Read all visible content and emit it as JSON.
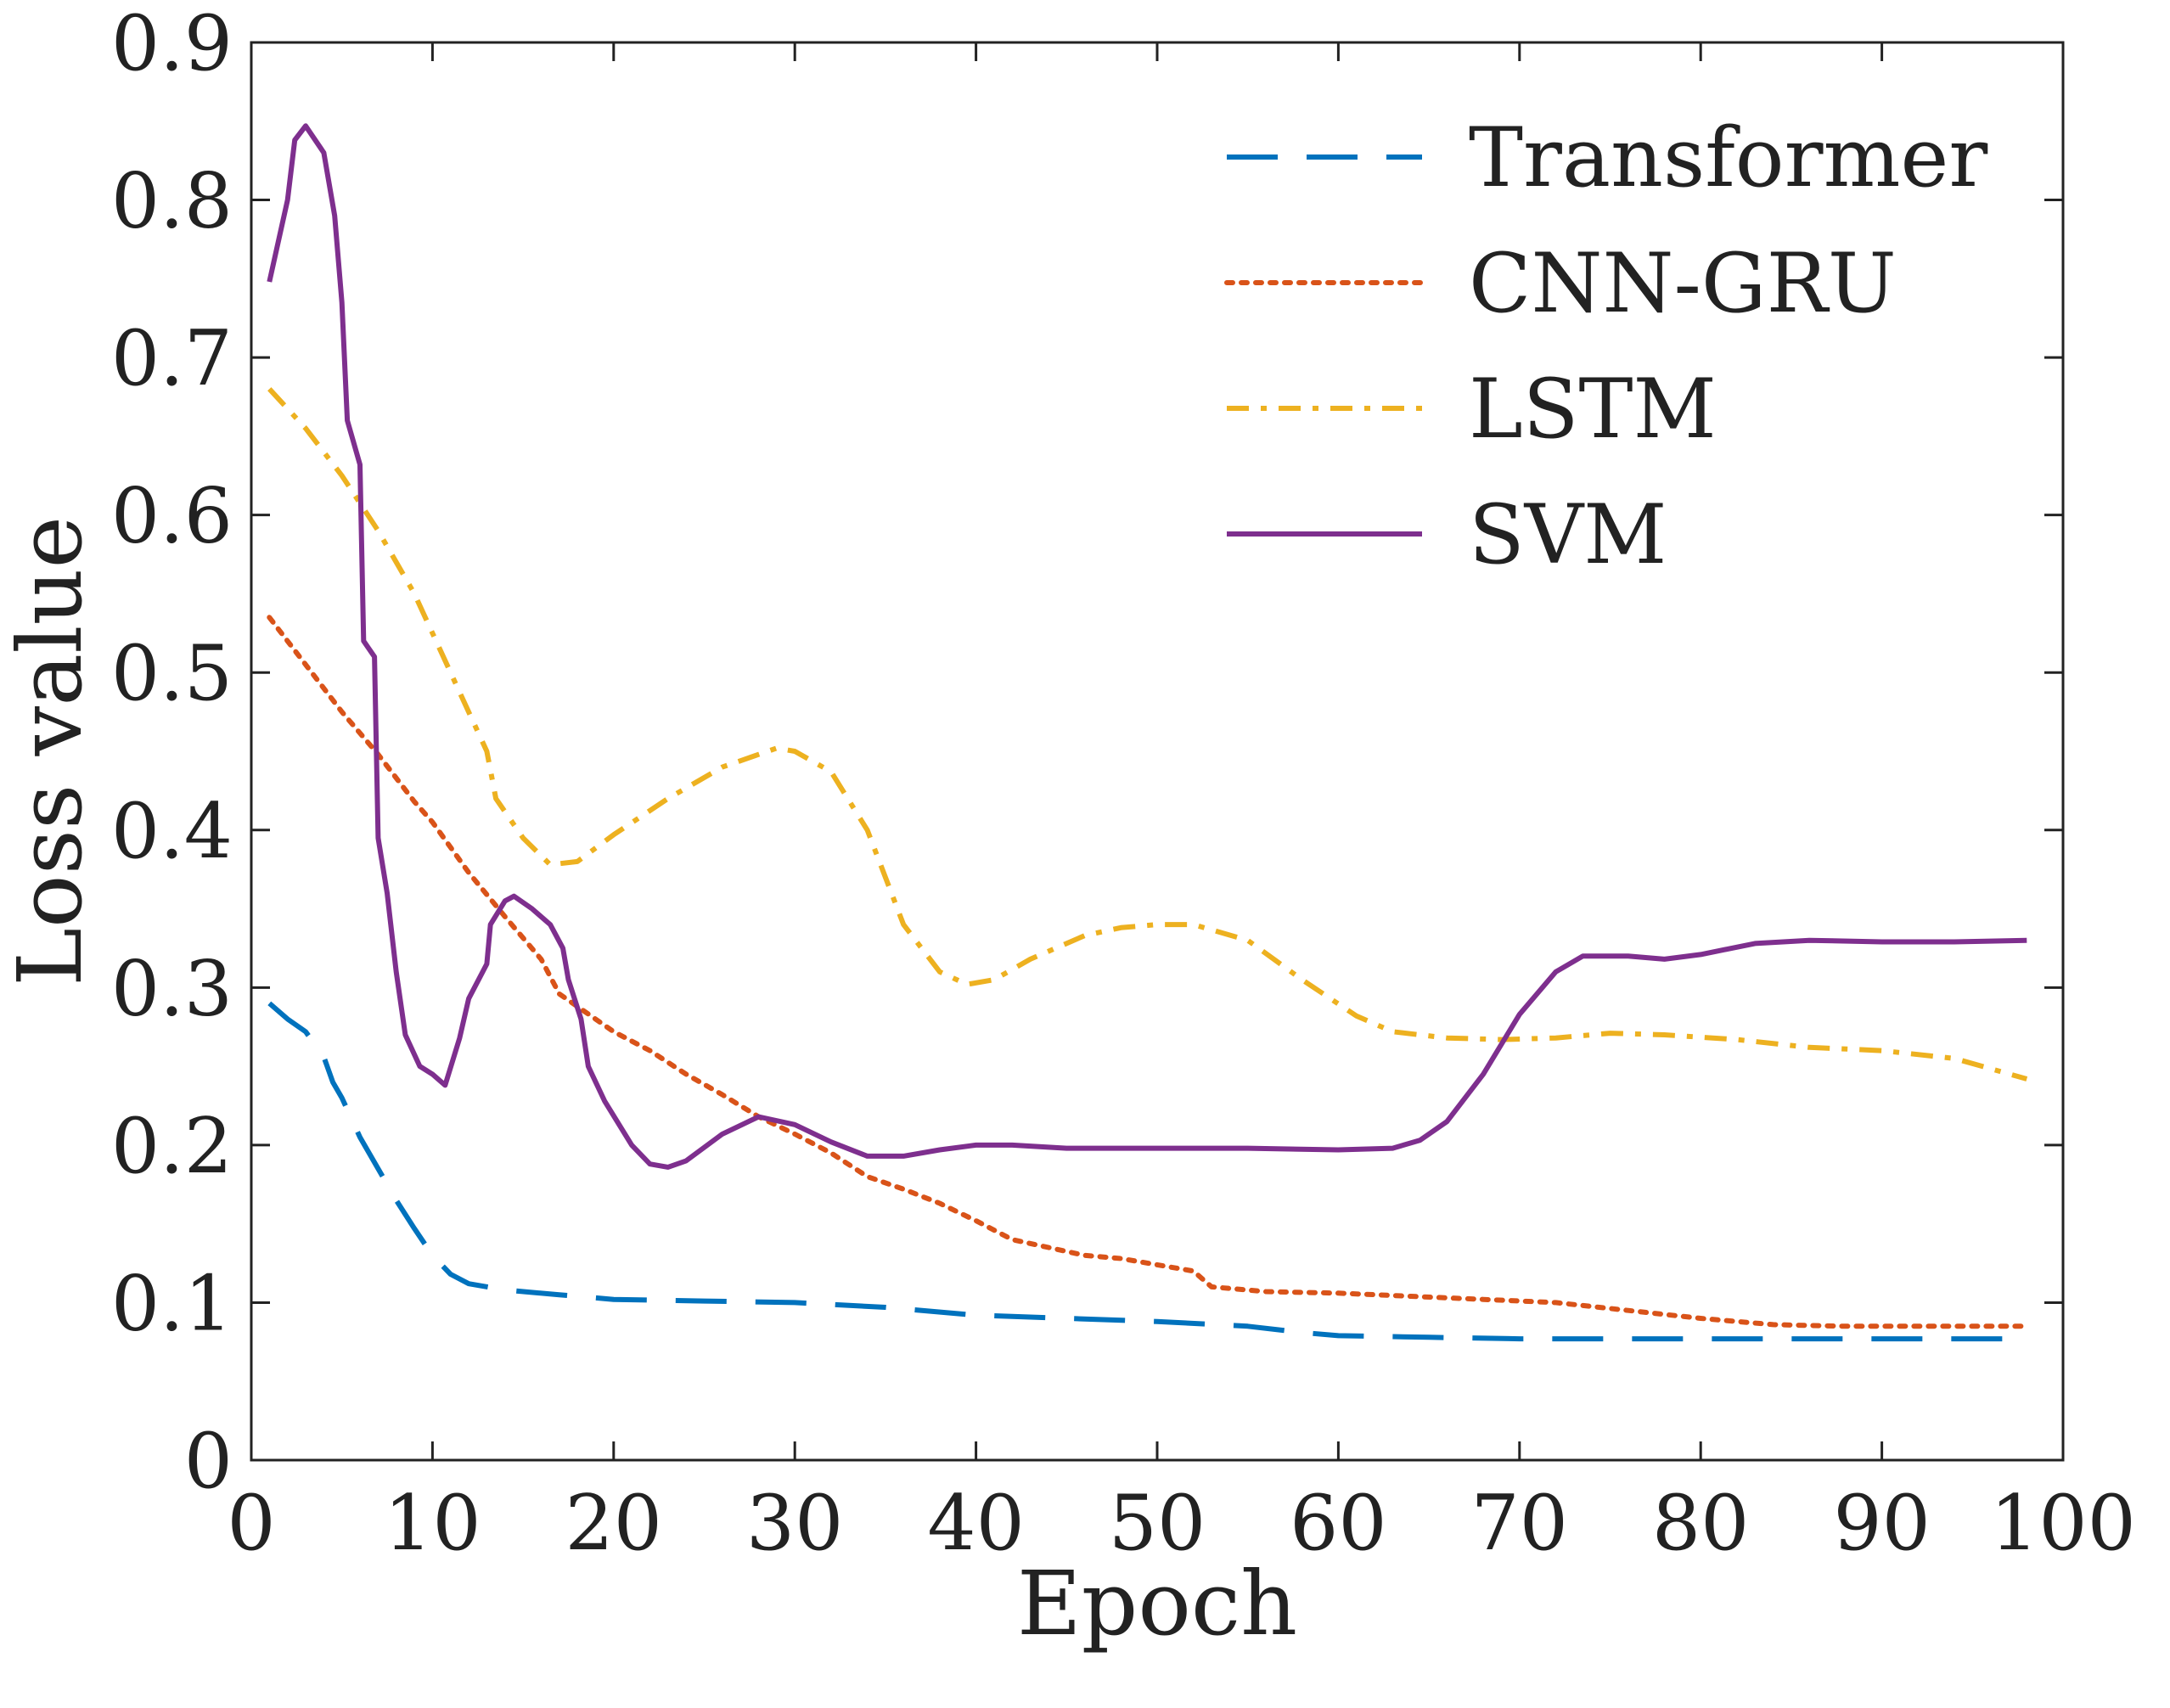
{
  "chart_data": {
    "type": "line",
    "title": "",
    "xlabel": "Epoch",
    "ylabel": "Loss value",
    "xlim": [
      0,
      100
    ],
    "ylim": [
      0,
      0.9
    ],
    "xticks": [
      0,
      10,
      20,
      30,
      40,
      50,
      60,
      70,
      80,
      90,
      100
    ],
    "xtick_labels": [
      "0",
      "10",
      "20",
      "30",
      "40",
      "50",
      "60",
      "70",
      "80",
      "90",
      "100"
    ],
    "yticks": [
      0,
      0.1,
      0.2,
      0.3,
      0.4,
      0.5,
      0.6,
      0.7,
      0.8,
      0.9
    ],
    "ytick_labels": [
      "0",
      "0.1",
      "0.2",
      "0.3",
      "0.4",
      "0.5",
      "0.6",
      "0.7",
      "0.8",
      "0.9"
    ],
    "grid": false,
    "legend_position": "top-right",
    "series": [
      {
        "name": "Transformer",
        "color": "#0072BD",
        "style": "dashed",
        "points": [
          [
            1,
            0.29
          ],
          [
            2,
            0.28
          ],
          [
            3,
            0.272
          ],
          [
            4,
            0.256
          ],
          [
            4.5,
            0.24
          ],
          [
            5,
            0.23
          ],
          [
            6,
            0.205
          ],
          [
            7,
            0.185
          ],
          [
            8,
            0.165
          ],
          [
            9,
            0.147
          ],
          [
            10,
            0.13
          ],
          [
            11,
            0.118
          ],
          [
            12,
            0.112
          ],
          [
            14,
            0.108
          ],
          [
            17,
            0.105
          ],
          [
            20,
            0.102
          ],
          [
            25,
            0.101
          ],
          [
            30,
            0.1
          ],
          [
            35,
            0.097
          ],
          [
            40,
            0.092
          ],
          [
            45,
            0.09
          ],
          [
            50,
            0.088
          ],
          [
            55,
            0.085
          ],
          [
            58,
            0.081
          ],
          [
            60,
            0.079
          ],
          [
            65,
            0.078
          ],
          [
            70,
            0.077
          ],
          [
            80,
            0.077
          ],
          [
            90,
            0.077
          ],
          [
            98,
            0.077
          ]
        ]
      },
      {
        "name": "CNN-GRU",
        "color": "#D95319",
        "style": "dotted",
        "points": [
          [
            1,
            0.535
          ],
          [
            3,
            0.505
          ],
          [
            5,
            0.475
          ],
          [
            7,
            0.448
          ],
          [
            9,
            0.418
          ],
          [
            10,
            0.405
          ],
          [
            12,
            0.373
          ],
          [
            14,
            0.345
          ],
          [
            16,
            0.318
          ],
          [
            17,
            0.296
          ],
          [
            20,
            0.272
          ],
          [
            22,
            0.26
          ],
          [
            24,
            0.245
          ],
          [
            26,
            0.232
          ],
          [
            28,
            0.218
          ],
          [
            30,
            0.207
          ],
          [
            32,
            0.195
          ],
          [
            34,
            0.18
          ],
          [
            36,
            0.172
          ],
          [
            38,
            0.163
          ],
          [
            40,
            0.152
          ],
          [
            42,
            0.14
          ],
          [
            44,
            0.135
          ],
          [
            46,
            0.13
          ],
          [
            48,
            0.128
          ],
          [
            50,
            0.124
          ],
          [
            52,
            0.12
          ],
          [
            53,
            0.11
          ],
          [
            56,
            0.107
          ],
          [
            60,
            0.106
          ],
          [
            64,
            0.104
          ],
          [
            68,
            0.102
          ],
          [
            72,
            0.1
          ],
          [
            76,
            0.095
          ],
          [
            80,
            0.09
          ],
          [
            84,
            0.086
          ],
          [
            88,
            0.085
          ],
          [
            92,
            0.085
          ],
          [
            98,
            0.085
          ]
        ]
      },
      {
        "name": "LSTM",
        "color": "#EDB120",
        "style": "dashdot",
        "points": [
          [
            1,
            0.68
          ],
          [
            3,
            0.655
          ],
          [
            5,
            0.625
          ],
          [
            7,
            0.59
          ],
          [
            9,
            0.55
          ],
          [
            11,
            0.5
          ],
          [
            13,
            0.45
          ],
          [
            13.5,
            0.42
          ],
          [
            15,
            0.395
          ],
          [
            16.5,
            0.378
          ],
          [
            18,
            0.38
          ],
          [
            20,
            0.397
          ],
          [
            23,
            0.42
          ],
          [
            26,
            0.44
          ],
          [
            29,
            0.452
          ],
          [
            30,
            0.45
          ],
          [
            32,
            0.437
          ],
          [
            34,
            0.4
          ],
          [
            35,
            0.37
          ],
          [
            36,
            0.34
          ],
          [
            38,
            0.31
          ],
          [
            39.5,
            0.302
          ],
          [
            41,
            0.305
          ],
          [
            43,
            0.318
          ],
          [
            46,
            0.333
          ],
          [
            48,
            0.338
          ],
          [
            50,
            0.34
          ],
          [
            52,
            0.34
          ],
          [
            55,
            0.33
          ],
          [
            58,
            0.305
          ],
          [
            61,
            0.282
          ],
          [
            63,
            0.272
          ],
          [
            66,
            0.268
          ],
          [
            69,
            0.267
          ],
          [
            72,
            0.268
          ],
          [
            75,
            0.271
          ],
          [
            78,
            0.27
          ],
          [
            82,
            0.267
          ],
          [
            86,
            0.262
          ],
          [
            90,
            0.26
          ],
          [
            94,
            0.255
          ],
          [
            98,
            0.242
          ]
        ]
      },
      {
        "name": "SVM",
        "color": "#7E2F8E",
        "style": "solid",
        "points": [
          [
            1,
            0.748
          ],
          [
            2,
            0.8
          ],
          [
            2.4,
            0.838
          ],
          [
            3,
            0.847
          ],
          [
            4,
            0.83
          ],
          [
            4.6,
            0.79
          ],
          [
            5,
            0.735
          ],
          [
            5.3,
            0.66
          ],
          [
            6,
            0.632
          ],
          [
            6.2,
            0.52
          ],
          [
            6.8,
            0.51
          ],
          [
            7,
            0.395
          ],
          [
            7.5,
            0.36
          ],
          [
            8,
            0.31
          ],
          [
            8.5,
            0.27
          ],
          [
            9.3,
            0.25
          ],
          [
            10,
            0.245
          ],
          [
            10.7,
            0.238
          ],
          [
            11.5,
            0.268
          ],
          [
            12,
            0.293
          ],
          [
            13,
            0.315
          ],
          [
            13.2,
            0.34
          ],
          [
            14,
            0.355
          ],
          [
            14.5,
            0.358
          ],
          [
            15.5,
            0.35
          ],
          [
            16.5,
            0.34
          ],
          [
            17.2,
            0.325
          ],
          [
            17.5,
            0.305
          ],
          [
            18.2,
            0.28
          ],
          [
            18.6,
            0.25
          ],
          [
            19.5,
            0.228
          ],
          [
            21,
            0.2
          ],
          [
            22,
            0.188
          ],
          [
            23,
            0.186
          ],
          [
            24,
            0.19
          ],
          [
            26,
            0.207
          ],
          [
            28,
            0.218
          ],
          [
            30,
            0.213
          ],
          [
            32,
            0.202
          ],
          [
            34,
            0.193
          ],
          [
            36,
            0.193
          ],
          [
            38,
            0.197
          ],
          [
            40,
            0.2
          ],
          [
            42,
            0.2
          ],
          [
            45,
            0.198
          ],
          [
            50,
            0.198
          ],
          [
            55,
            0.198
          ],
          [
            60,
            0.197
          ],
          [
            63,
            0.198
          ],
          [
            64.5,
            0.203
          ],
          [
            66,
            0.215
          ],
          [
            68,
            0.245
          ],
          [
            70,
            0.283
          ],
          [
            72,
            0.31
          ],
          [
            73.5,
            0.32
          ],
          [
            76,
            0.32
          ],
          [
            78,
            0.318
          ],
          [
            80,
            0.321
          ],
          [
            83,
            0.328
          ],
          [
            86,
            0.33
          ],
          [
            90,
            0.329
          ],
          [
            94,
            0.329
          ],
          [
            98,
            0.33
          ]
        ]
      }
    ]
  }
}
